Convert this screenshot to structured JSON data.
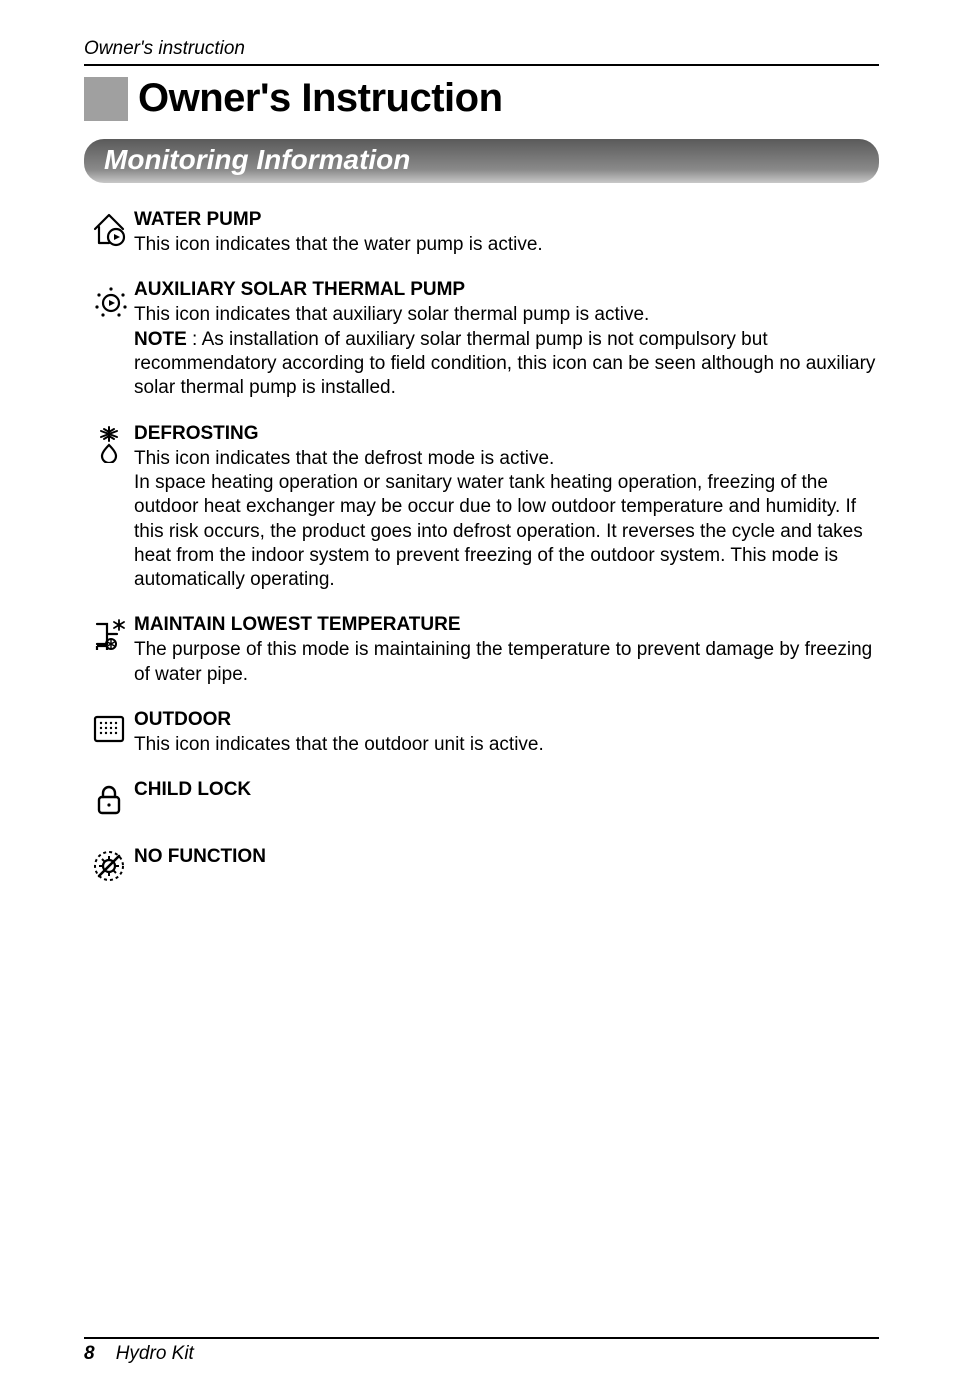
{
  "running_head": "Owner's instruction",
  "title": "Owner's Instruction",
  "subtitle": "Monitoring Information",
  "sections": [
    {
      "icon": "water-pump",
      "heading": "WATER PUMP",
      "body": "This icon indicates that the water pump is active."
    },
    {
      "icon": "aux-solar",
      "heading": "AUXILIARY SOLAR THERMAL PUMP",
      "body_pre": "This icon indicates that auxiliary solar thermal pump is active.",
      "note_label": "NOTE",
      "note_body": " : As installation of auxiliary solar thermal pump is not compulsory but recommendatory according to field condition, this icon can be seen although no auxiliary solar thermal pump is installed."
    },
    {
      "icon": "defrost",
      "heading": "DEFROSTING",
      "body": "This icon indicates that the defrost mode is active.\nIn space heating operation or sanitary water tank heating operation, freezing of the outdoor heat exchanger may be occur due to low outdoor temperature and humidity. If this risk occurs, the product goes into defrost operation. It reverses the cycle and takes heat from the indoor system to prevent freezing of the outdoor system. This mode is automatically operating."
    },
    {
      "icon": "maintain-low",
      "heading": "MAINTAIN LOWEST TEMPERATURE",
      "body": "The purpose of this mode is maintaining the temperature to prevent damage by freezing of water pipe."
    },
    {
      "icon": "outdoor",
      "heading": "OUTDOOR",
      "body": "This icon indicates that the outdoor unit is active."
    },
    {
      "icon": "child-lock",
      "heading": "CHILD LOCK",
      "body": ""
    },
    {
      "icon": "no-function",
      "heading": "NO FUNCTION",
      "body": ""
    }
  ],
  "footer_page": "8",
  "footer_product": "Hydro Kit",
  "colors": {
    "text": "#000000",
    "title_block": "#a0a0a0",
    "banner_grad_top": "#5a5a5a",
    "banner_grad_mid": "#8a8a8a",
    "banner_grad_bot": "#c8c8c8",
    "rule": "#000000"
  },
  "typography": {
    "body_size_pt": 14,
    "title_size_pt": 30,
    "subtitle_size_pt": 21
  }
}
